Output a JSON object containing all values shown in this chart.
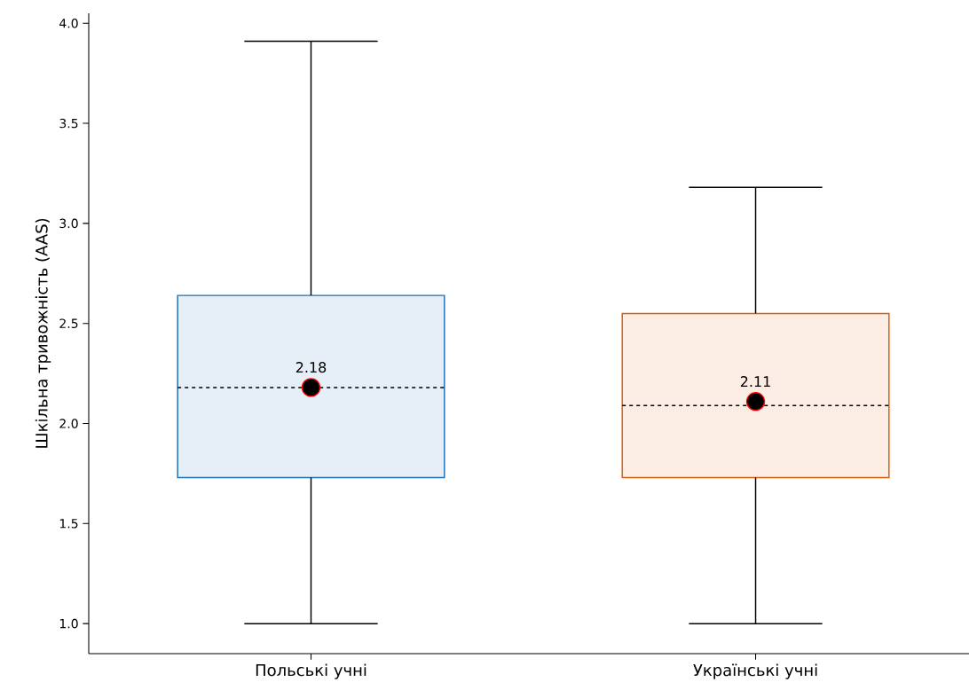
{
  "chart_data": {
    "type": "box",
    "ylabel": "Шкільна тривожність (AAS)",
    "categories": [
      "Польські учні",
      "Українські учні"
    ],
    "boxes": [
      {
        "low": 1.0,
        "q1": 1.73,
        "median": 2.18,
        "q3": 2.64,
        "high": 3.91,
        "mean": 2.18
      },
      {
        "low": 1.0,
        "q1": 1.73,
        "median": 2.09,
        "q3": 2.55,
        "high": 3.18,
        "mean": 2.11
      }
    ],
    "colors": [
      "#1f6fb4",
      "#d95f0e"
    ],
    "ylim": [
      0.85,
      4.05
    ],
    "yticks": [
      {
        "value": 1.0,
        "label": "1.0"
      },
      {
        "value": 1.5,
        "label": "1.5"
      },
      {
        "value": 2.0,
        "label": "2.0"
      },
      {
        "value": 2.5,
        "label": "2.5"
      },
      {
        "value": 3.0,
        "label": "3.0"
      },
      {
        "value": 3.5,
        "label": "3.5"
      },
      {
        "value": 4.0,
        "label": "4.0"
      }
    ],
    "annotations": [
      {
        "text": "2.18",
        "x": "Польські учні",
        "y": 2.18
      },
      {
        "text": "2.11",
        "x": "Українські учні",
        "y": 2.11
      }
    ],
    "grid": false
  }
}
